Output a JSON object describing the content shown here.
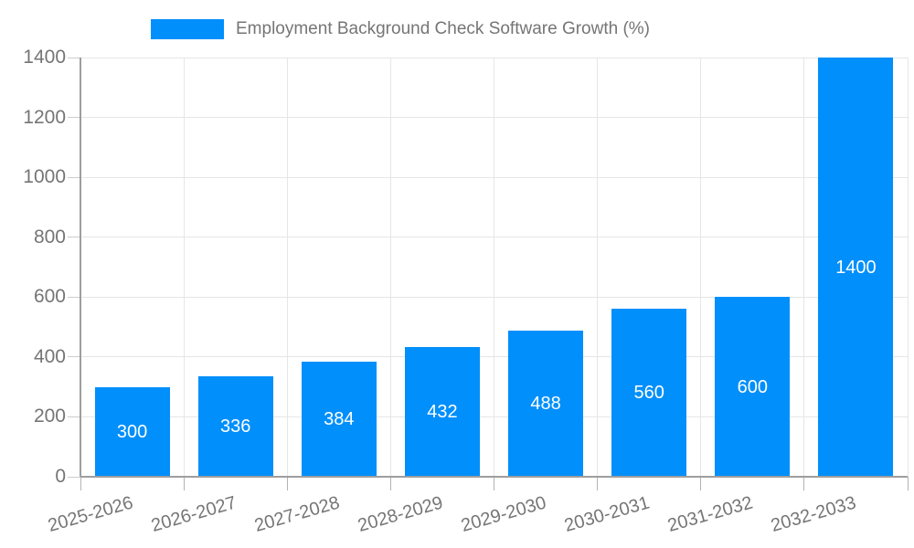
{
  "legend": {
    "label": "Employment Background Check Software Growth (%)"
  },
  "chart_data": {
    "type": "bar",
    "title": "Employment Background Check Software Growth (%)",
    "categories": [
      "2025-2026",
      "2026-2027",
      "2027-2028",
      "2028-2029",
      "2029-2030",
      "2030-2031",
      "2031-2032",
      "2032-2033"
    ],
    "values": [
      300,
      336,
      384,
      432,
      488,
      560,
      600,
      1400
    ],
    "xlabel": "",
    "ylabel": "",
    "ylim": [
      0,
      1400
    ],
    "yticks": [
      0,
      200,
      400,
      600,
      800,
      1000,
      1200,
      1400
    ],
    "grid": true,
    "legend_position": "top-center",
    "x_label_rotation_deg": -16,
    "bar_labels_inside": true
  },
  "colors": {
    "bar": "#008FFB",
    "bar_label_text": "#ffffff",
    "axis_line": "#9e9e9e",
    "gridline": "#e6e6e6",
    "tick_y": "#cccccc",
    "tick_x": "#b3b3b3",
    "axis_text": "#757575",
    "legend_text": "#757575",
    "background": "#ffffff"
  }
}
